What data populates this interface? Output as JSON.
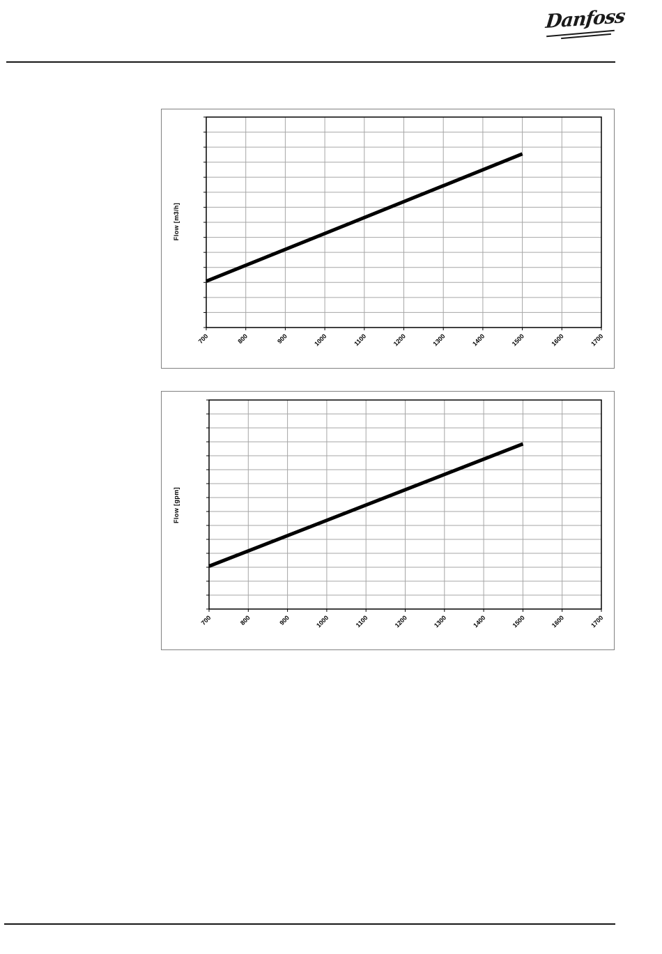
{
  "header": {
    "logo_text": "Danfoss"
  },
  "colors": {
    "gridline": "#a6a6a6",
    "plot_border": "#000000",
    "frame_border": "#808080",
    "series": "#000000",
    "rule": "#161616"
  },
  "chart_data": [
    {
      "type": "line",
      "title": "",
      "xlabel": "",
      "ylabel": "Flow [m3/h]",
      "x_tick_labels": [
        "700",
        "800",
        "900",
        "1000",
        "1100",
        "1200",
        "1300",
        "1400",
        "1500",
        "1600",
        "1700"
      ],
      "xlim": [
        700,
        1700
      ],
      "y_axis_tick_labels": "none (unlabeled axis)",
      "y_gridline_rows": 14,
      "grid": "both",
      "legend": "none",
      "series": [
        {
          "name": "flow-m3h-line",
          "color": "#000000",
          "stroke_width": 5,
          "points_x": [
            700,
            1500
          ],
          "points_y_fraction_of_axis_height": [
            0.22,
            0.825
          ]
        }
      ]
    },
    {
      "type": "line",
      "title": "",
      "xlabel": "",
      "ylabel": "Flow [gpm]",
      "x_tick_labels": [
        "700",
        "800",
        "900",
        "1000",
        "1100",
        "1200",
        "1300",
        "1400",
        "1500",
        "1600",
        "1700"
      ],
      "xlim": [
        700,
        1700
      ],
      "y_axis_tick_labels": "none (unlabeled axis)",
      "y_gridline_rows": 15,
      "grid": "both",
      "legend": "none",
      "series": [
        {
          "name": "flow-gpm-line",
          "color": "#000000",
          "stroke_width": 5,
          "points_x": [
            700,
            1500
          ],
          "points_y_fraction_of_axis_height": [
            0.205,
            0.79
          ]
        }
      ]
    }
  ]
}
